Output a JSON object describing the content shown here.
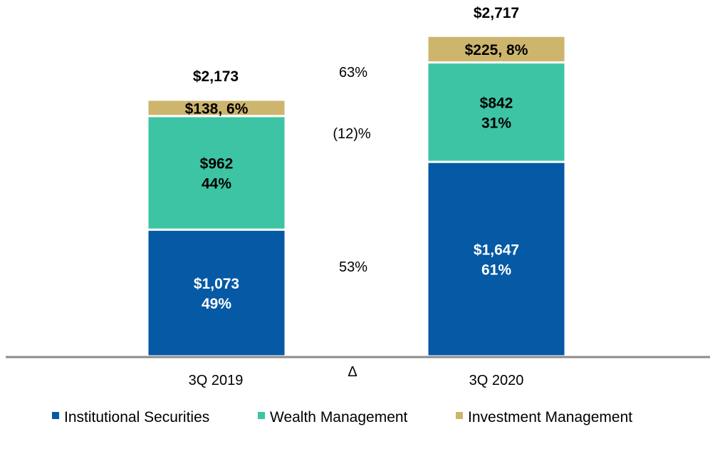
{
  "chart_data": {
    "type": "bar",
    "stacked": true,
    "categories": [
      "3Q 2019",
      "3Q 2020"
    ],
    "delta_label": "Δ",
    "series": [
      {
        "name": "Institutional Securities",
        "color": "#0559a5",
        "label_color": "#ffffff",
        "values": [
          1073,
          1647
        ],
        "labels": [
          [
            "$1,073",
            "49%"
          ],
          [
            "$1,647",
            "61%"
          ]
        ],
        "delta": "53%"
      },
      {
        "name": "Wealth Management",
        "color": "#3dc4a4",
        "label_color": "#000000",
        "values": [
          962,
          842
        ],
        "labels": [
          [
            "$962",
            "44%"
          ],
          [
            "$842",
            "31%"
          ]
        ],
        "delta": "(12)%"
      },
      {
        "name": "Investment Management",
        "color": "#cdb56e",
        "label_color": "#000000",
        "values": [
          138,
          225
        ],
        "labels": [
          [
            "$138, 6%"
          ],
          [
            "$225, 8%"
          ]
        ],
        "delta": "63%"
      }
    ],
    "totals": [
      "$2,173",
      "$2,717"
    ],
    "legend_position": "bottom",
    "grid": false
  }
}
